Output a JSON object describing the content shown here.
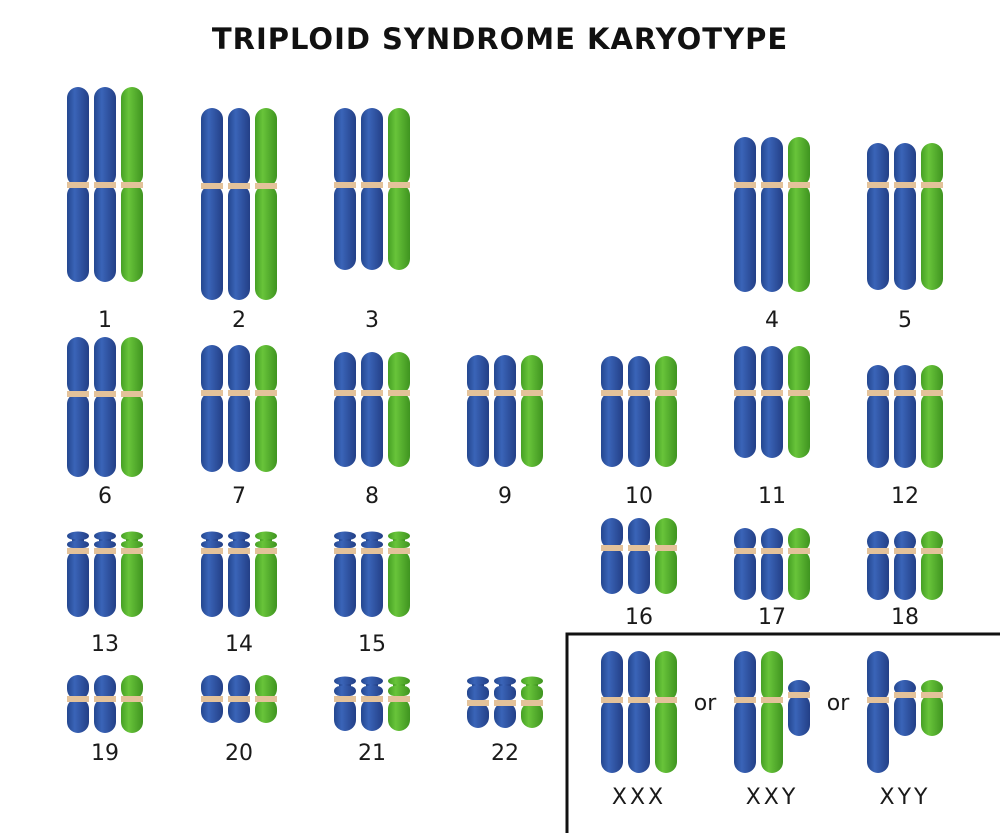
{
  "title": "TRIPLOID SYNDROME KARYOTYPE",
  "colors": {
    "maternal": "#2f56a8",
    "paternal": "#57b52e",
    "centromere": "#e3c29a",
    "background": "#ffffff"
  },
  "pairs": [
    {
      "label": "1"
    },
    {
      "label": "2"
    },
    {
      "label": "3"
    },
    {
      "label": "4"
    },
    {
      "label": "5"
    },
    {
      "label": "6"
    },
    {
      "label": "7"
    },
    {
      "label": "8"
    },
    {
      "label": "9"
    },
    {
      "label": "10"
    },
    {
      "label": "11"
    },
    {
      "label": "12"
    },
    {
      "label": "13"
    },
    {
      "label": "14"
    },
    {
      "label": "15"
    },
    {
      "label": "16"
    },
    {
      "label": "17"
    },
    {
      "label": "18"
    },
    {
      "label": "19"
    },
    {
      "label": "20"
    },
    {
      "label": "21"
    },
    {
      "label": "22"
    }
  ],
  "sex_box": {
    "options": [
      {
        "label": "XXX"
      },
      {
        "label": "XXY"
      },
      {
        "label": "XYY"
      }
    ],
    "separator": "or"
  }
}
